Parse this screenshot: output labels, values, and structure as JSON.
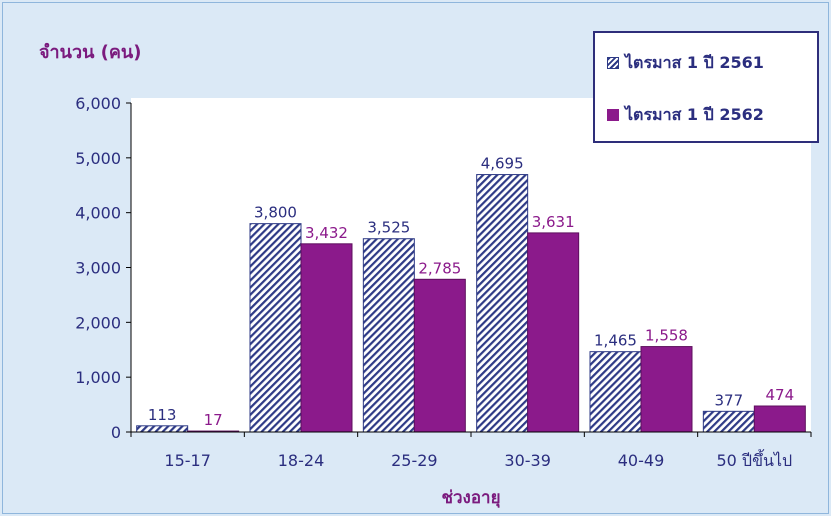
{
  "chart_data": {
    "type": "bar",
    "title": "",
    "ylabel": "จำนวน (คน)",
    "xlabel": "ช่วงอายุ",
    "categories": [
      "15-17",
      "18-24",
      "25-29",
      "30-39",
      "40-49",
      "50 ปีขึ้นไป"
    ],
    "series": [
      {
        "name": "ไตรมาส 1 ปี 2561",
        "values": [
          113,
          3800,
          3525,
          4695,
          1465,
          377
        ],
        "labels": [
          "113",
          "3,800",
          "3,525",
          "4,695",
          "1,465",
          "377"
        ]
      },
      {
        "name": "ไตรมาส 1 ปี 2562",
        "values": [
          17,
          3432,
          2785,
          3631,
          1558,
          474
        ],
        "labels": [
          "17",
          "3,432",
          "2,785",
          "3,631",
          "1,558",
          "474"
        ]
      }
    ],
    "ylim": [
      0,
      6000
    ],
    "yticks": [
      "0",
      "1,000",
      "2,000",
      "3,000",
      "4,000",
      "5,000",
      "6,000"
    ],
    "grid": false,
    "legend_position": "top-right"
  },
  "colors": {
    "series1_hatch": "#2e3a86",
    "series2_fill": "#8b1a8b",
    "axis_label": "#7b1b7e",
    "tick_text": "#2b2e7f",
    "label2": "#8b1a8b",
    "plot_bg": "#ffffff",
    "outer_bg": "#dbe9f6"
  }
}
